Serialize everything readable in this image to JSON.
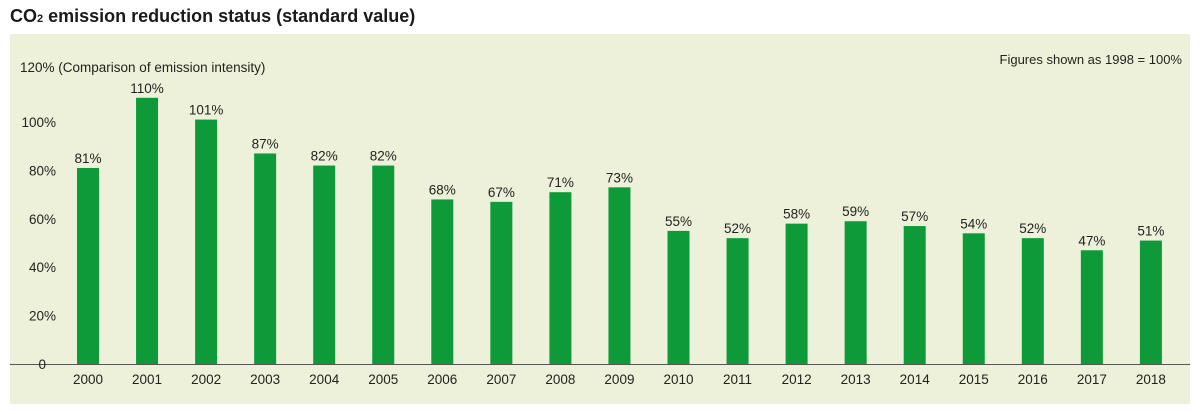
{
  "header": {
    "title_prefix": "CO",
    "title_subscript": "2",
    "title_suffix": " emission reduction status (standard value)"
  },
  "chart_data": {
    "type": "bar",
    "title": "CO2 emission reduction status (standard value)",
    "ylabel": "120% (Comparison of emission intensity)",
    "note": "Figures shown as 1998 = 100%",
    "categories": [
      "2000",
      "2001",
      "2002",
      "2003",
      "2004",
      "2005",
      "2006",
      "2007",
      "2008",
      "2009",
      "2010",
      "2011",
      "2012",
      "2013",
      "2014",
      "2015",
      "2016",
      "2017",
      "2018"
    ],
    "values": [
      81,
      110,
      101,
      87,
      82,
      82,
      68,
      67,
      71,
      73,
      55,
      52,
      58,
      59,
      57,
      54,
      52,
      47,
      51
    ],
    "value_labels": [
      "81%",
      "110%",
      "101%",
      "87%",
      "82%",
      "82%",
      "68%",
      "67%",
      "71%",
      "73%",
      "55%",
      "52%",
      "58%",
      "59%",
      "57%",
      "54%",
      "52%",
      "47%",
      "51%"
    ],
    "ylim": [
      0,
      120
    ],
    "yticks": [
      0,
      20,
      40,
      60,
      80,
      100
    ],
    "ytick_labels": [
      "0",
      "20%",
      "40%",
      "60%",
      "80%",
      "100%"
    ],
    "bar_color": "#0f9a3a",
    "background_color": "#eef1d9",
    "grid": false
  }
}
